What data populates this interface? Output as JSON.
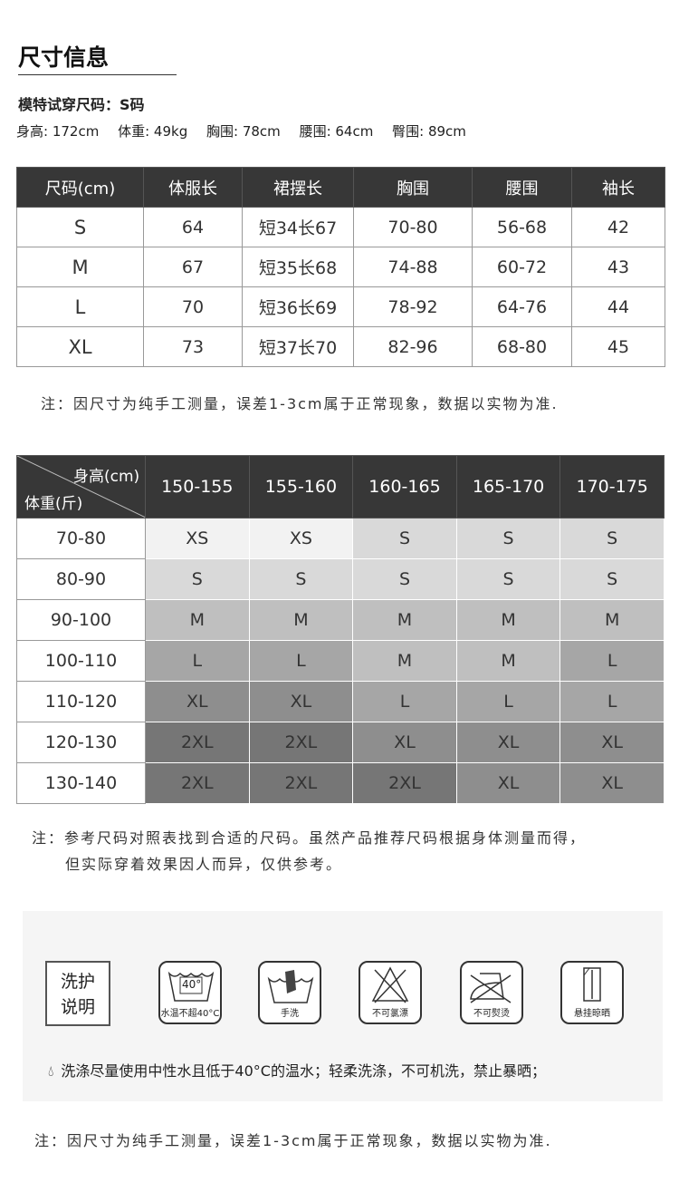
{
  "title": "尺寸信息",
  "model": {
    "label": "模特试穿尺码：S码",
    "measurements": [
      "身高: 172cm",
      "体重: 49kg",
      "胸围: 78cm",
      "腰围: 64cm",
      "臀围: 89cm"
    ]
  },
  "size_table": {
    "headers": [
      "尺码(cm)",
      "体服长",
      "裙摆长",
      "胸围",
      "腰围",
      "袖长"
    ],
    "rows": [
      [
        "S",
        "64",
        "短34长67",
        "70-80",
        "56-68",
        "42"
      ],
      [
        "M",
        "67",
        "短35长68",
        "74-88",
        "60-72",
        "43"
      ],
      [
        "L",
        "70",
        "短36长69",
        "78-92",
        "64-76",
        "44"
      ],
      [
        "XL",
        "73",
        "短37长70",
        "82-96",
        "68-80",
        "45"
      ]
    ]
  },
  "note1": "注：因尺寸为纯手工测量，误差1-3cm属于正常现象，数据以实物为准.",
  "recommend_table": {
    "corner_top": "身高(cm)",
    "corner_bottom": "体重(斤)",
    "heights": [
      "150-155",
      "155-160",
      "160-165",
      "165-170",
      "170-175"
    ],
    "rows": [
      {
        "weight": "70-80",
        "sizes": [
          "XS",
          "XS",
          "S",
          "S",
          "S"
        ]
      },
      {
        "weight": "80-90",
        "sizes": [
          "S",
          "S",
          "S",
          "S",
          "S"
        ]
      },
      {
        "weight": "90-100",
        "sizes": [
          "M",
          "M",
          "M",
          "M",
          "M"
        ]
      },
      {
        "weight": "100-110",
        "sizes": [
          "L",
          "L",
          "M",
          "M",
          "L"
        ]
      },
      {
        "weight": "110-120",
        "sizes": [
          "XL",
          "XL",
          "L",
          "L",
          "L"
        ]
      },
      {
        "weight": "120-130",
        "sizes": [
          "2XL",
          "2XL",
          "XL",
          "XL",
          "XL"
        ]
      },
      {
        "weight": "130-140",
        "sizes": [
          "2XL",
          "2XL",
          "2XL",
          "XL",
          "XL"
        ]
      }
    ],
    "size_colors": {
      "XS": "#f2f2f2",
      "S": "#d9d9d9",
      "M": "#bfbfbf",
      "L": "#a6a6a6",
      "XL": "#8e8e8e",
      "2XL": "#767676"
    }
  },
  "note2": [
    "注：参考尺码对照表找到合适的尺码。虽然产品推荐尺码根据身体测量而得，",
    "但实际穿着效果因人而异，仅供参考。"
  ],
  "care": {
    "label_line1": "洗护",
    "label_line2": "说明",
    "icons": [
      {
        "icon": "wash-40-icon",
        "label": "水温不超40°C",
        "temp": "40°"
      },
      {
        "icon": "hand-wash-icon",
        "label": "手洗"
      },
      {
        "icon": "no-bleach-icon",
        "label": "不可氯漂"
      },
      {
        "icon": "no-iron-icon",
        "label": "不可熨烫"
      },
      {
        "icon": "hang-dry-icon",
        "label": "悬挂晾晒"
      }
    ],
    "text": "洗涤尽量使用中性水且低于40°C的温水；轻柔洗涤，不可机洗，禁止暴晒；"
  },
  "note3": "注：因尺寸为纯手工测量，误差1-3cm属于正常现象，数据以实物为准."
}
